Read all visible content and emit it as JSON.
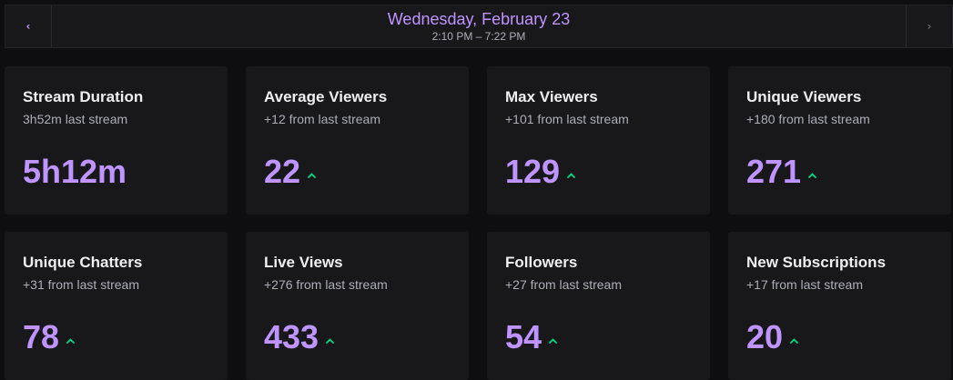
{
  "header": {
    "date": "Wednesday, February 23",
    "time_range": "2:10 PM – 7:22 PM",
    "prev_icon": "chevron-left-icon",
    "next_icon": "chevron-right-icon"
  },
  "colors": {
    "accent": "#bf94ff",
    "trend_up": "#00db84",
    "card_bg": "#18181b",
    "page_bg": "#0e0e10"
  },
  "stats": [
    {
      "title": "Stream Duration",
      "subtitle": "3h52m last stream",
      "value": "5h12m",
      "trend": "none"
    },
    {
      "title": "Average Viewers",
      "subtitle": "+12 from last stream",
      "value": "22",
      "trend": "up"
    },
    {
      "title": "Max Viewers",
      "subtitle": "+101 from last stream",
      "value": "129",
      "trend": "up"
    },
    {
      "title": "Unique Viewers",
      "subtitle": "+180 from last stream",
      "value": "271",
      "trend": "up"
    },
    {
      "title": "Unique Chatters",
      "subtitle": "+31 from last stream",
      "value": "78",
      "trend": "up"
    },
    {
      "title": "Live Views",
      "subtitle": "+276 from last stream",
      "value": "433",
      "trend": "up"
    },
    {
      "title": "Followers",
      "subtitle": "+27 from last stream",
      "value": "54",
      "trend": "up"
    },
    {
      "title": "New Subscriptions",
      "subtitle": "+17 from last stream",
      "value": "20",
      "trend": "up"
    }
  ]
}
